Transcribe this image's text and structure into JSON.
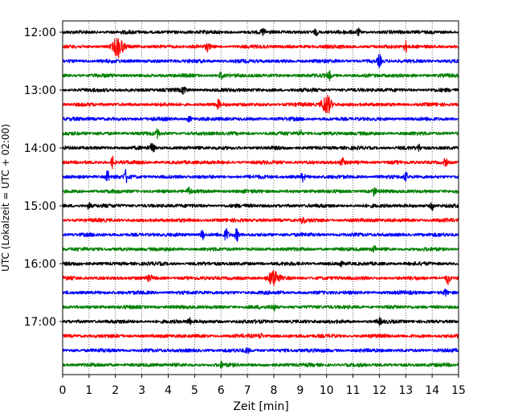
{
  "chart_data": {
    "type": "line",
    "title": "",
    "xlabel": "Zeit  [min]",
    "ylabel": "UTC (Lokalzeit = UTC + 02:00)",
    "xlim": [
      0,
      15
    ],
    "x_ticks": [
      "0",
      "1",
      "2",
      "3",
      "4",
      "5",
      "6",
      "7",
      "8",
      "9",
      "10",
      "11",
      "12",
      "13",
      "14",
      "15"
    ],
    "y_ticks": [
      "12:00",
      "13:00",
      "14:00",
      "15:00",
      "16:00",
      "17:00"
    ],
    "grid": "vertical dotted",
    "row_interval_min": 15,
    "trace_colors": [
      "#000000",
      "#ff0000",
      "#0000ff",
      "#008000"
    ],
    "series": [
      {
        "start": "12:00",
        "events": [
          {
            "t": 7.6,
            "amp": 1.5
          },
          {
            "t": 9.6,
            "amp": 1.4
          },
          {
            "t": 11.2,
            "amp": 1.6
          }
        ]
      },
      {
        "start": "12:15",
        "events": [
          {
            "t": 2.1,
            "amp": 5
          },
          {
            "t": 5.5,
            "amp": 2
          },
          {
            "t": 13.0,
            "amp": 2.5
          }
        ]
      },
      {
        "start": "12:30",
        "events": [
          {
            "t": 12.0,
            "amp": 3
          }
        ]
      },
      {
        "start": "12:45",
        "events": [
          {
            "t": 10.1,
            "amp": 2
          },
          {
            "t": 6.0,
            "amp": 1.5
          }
        ]
      },
      {
        "start": "13:00",
        "events": [
          {
            "t": 4.6,
            "amp": 2
          }
        ]
      },
      {
        "start": "13:15",
        "events": [
          {
            "t": 10.0,
            "amp": 5
          },
          {
            "t": 5.9,
            "amp": 2
          }
        ]
      },
      {
        "start": "13:30",
        "events": [
          {
            "t": 4.8,
            "amp": 1.5
          }
        ]
      },
      {
        "start": "13:45",
        "events": [
          {
            "t": 3.6,
            "amp": 2
          },
          {
            "t": 9.0,
            "amp": 1.5
          }
        ]
      },
      {
        "start": "14:00",
        "events": [
          {
            "t": 3.4,
            "amp": 3
          },
          {
            "t": 13.5,
            "amp": 1.5
          }
        ]
      },
      {
        "start": "14:15",
        "events": [
          {
            "t": 1.9,
            "amp": 3
          },
          {
            "t": 10.6,
            "amp": 2
          },
          {
            "t": 14.5,
            "amp": 2
          }
        ]
      },
      {
        "start": "14:30",
        "events": [
          {
            "t": 1.7,
            "amp": 3
          },
          {
            "t": 2.4,
            "amp": 3
          },
          {
            "t": 9.1,
            "amp": 2
          },
          {
            "t": 13.0,
            "amp": 2
          }
        ]
      },
      {
        "start": "14:45",
        "events": [
          {
            "t": 4.8,
            "amp": 2
          },
          {
            "t": 11.8,
            "amp": 2
          }
        ]
      },
      {
        "start": "15:00",
        "events": [
          {
            "t": 1.0,
            "amp": 1.5
          },
          {
            "t": 14.0,
            "amp": 2
          }
        ]
      },
      {
        "start": "15:15",
        "events": [
          {
            "t": 9.1,
            "amp": 1.5
          }
        ]
      },
      {
        "start": "15:30",
        "events": [
          {
            "t": 5.3,
            "amp": 2.5
          },
          {
            "t": 6.2,
            "amp": 3
          },
          {
            "t": 6.6,
            "amp": 3
          }
        ]
      },
      {
        "start": "15:45",
        "events": [
          {
            "t": 11.8,
            "amp": 1.5
          }
        ]
      },
      {
        "start": "16:00",
        "events": [
          {
            "t": 10.5,
            "amp": 1.5
          }
        ]
      },
      {
        "start": "16:15",
        "events": [
          {
            "t": 8.0,
            "amp": 4
          },
          {
            "t": 14.6,
            "amp": 3
          },
          {
            "t": 3.3,
            "amp": 1.5
          }
        ]
      },
      {
        "start": "16:30",
        "events": [
          {
            "t": 14.5,
            "amp": 1.5
          }
        ]
      },
      {
        "start": "16:45",
        "events": [
          {
            "t": 8.0,
            "amp": 1.5
          }
        ]
      },
      {
        "start": "17:00",
        "events": [
          {
            "t": 4.8,
            "amp": 1.5
          },
          {
            "t": 12.0,
            "amp": 1.5
          }
        ]
      },
      {
        "start": "17:15",
        "events": [
          {
            "t": 7.5,
            "amp": 1.3
          }
        ]
      },
      {
        "start": "17:30",
        "events": [
          {
            "t": 7.0,
            "amp": 1.2
          }
        ]
      },
      {
        "start": "17:45",
        "events": [
          {
            "t": 6.0,
            "amp": 1.2
          }
        ]
      }
    ]
  }
}
